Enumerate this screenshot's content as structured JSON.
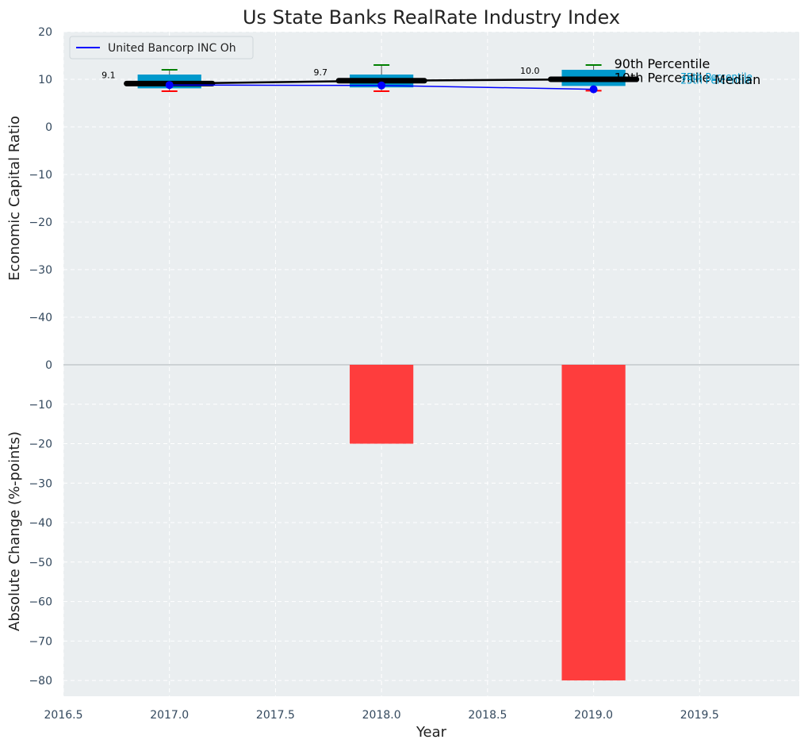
{
  "chart_data": {
    "type": "box+line+bar",
    "title": "Us State Banks RealRate Industry Index",
    "xlabel": "Year",
    "x_ticks": [
      "2016.5",
      "2017.0",
      "2017.5",
      "2018.0",
      "2018.5",
      "2019.0",
      "2019.5"
    ],
    "x_tick_values": [
      2016.5,
      2017.0,
      2017.5,
      2018.0,
      2018.5,
      2019.0,
      2019.5
    ],
    "xlim": [
      2016.5,
      2019.97
    ],
    "top_panel": {
      "ylabel": "Economic Capital Ratio",
      "ylim": [
        -50,
        20
      ],
      "y_ticks": [
        "20",
        "10",
        "0",
        "−10",
        "−20",
        "−30",
        "−40"
      ],
      "y_tick_values": [
        20,
        10,
        0,
        -10,
        -20,
        -30,
        -40
      ],
      "percentile_boxes": [
        {
          "year": 2017.0,
          "p10": 7.5,
          "p25": 8.1,
          "median": 9.1,
          "p75": 11.0,
          "p90": 12.0
        },
        {
          "year": 2018.0,
          "p10": 7.5,
          "p25": 8.3,
          "median": 9.7,
          "p75": 11.0,
          "p90": 13.0
        },
        {
          "year": 2019.0,
          "p10": 7.6,
          "p25": 8.6,
          "median": 10.0,
          "p75": 12.0,
          "p90": 13.0
        }
      ],
      "median_labels": [
        "9.1",
        "9.7",
        "10.0"
      ],
      "company_series": {
        "name": "United Bancorp INC Oh",
        "x": [
          2017.0,
          2018.0,
          2019.0
        ],
        "y": [
          8.8,
          8.7,
          7.9
        ],
        "color": "#0000ff"
      },
      "annotations": {
        "p90": "90th Percentile",
        "p75": "75th Percentile",
        "median": "Median",
        "p25": "25th Percentile",
        "p10": "10th Percentile"
      },
      "legend": {
        "position": "top-left",
        "entries": [
          "United Bancorp INC Oh"
        ]
      }
    },
    "bottom_panel": {
      "ylabel": "Absolute Change (%-points)",
      "ylim": [
        -84,
        0
      ],
      "y_ticks": [
        "0",
        "−10",
        "−20",
        "−30",
        "−40",
        "−50",
        "−60",
        "−70",
        "−80"
      ],
      "y_tick_values": [
        0,
        -10,
        -20,
        -30,
        -40,
        -50,
        -60,
        -70,
        -80
      ],
      "bars": {
        "x": [
          2017.0,
          2018.0,
          2019.0
        ],
        "values": [
          0,
          -20,
          -80
        ],
        "color": "#ff3333"
      }
    },
    "colors": {
      "box": "#0099cc",
      "median_line": "#000000",
      "p90_whisker": "#008000",
      "p10_whisker": "#ff0000",
      "background": "#eaeef0",
      "grid": "#ffffff"
    },
    "grid": true
  }
}
